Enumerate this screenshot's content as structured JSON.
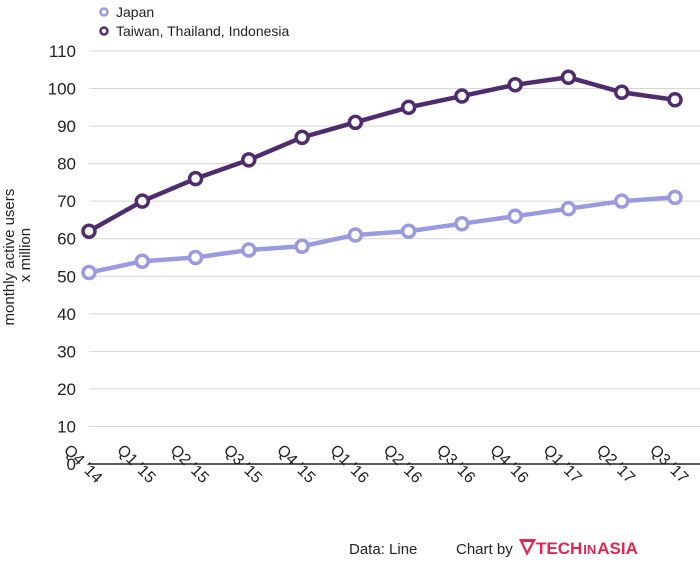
{
  "chart_data": {
    "type": "line",
    "title": "",
    "ylabel": [
      "monthly active users",
      "x million"
    ],
    "xlabel": "",
    "categories": [
      "Q4 '14",
      "Q1 '15",
      "Q2 '15",
      "Q3 '15",
      "Q4 '15",
      "Q1 '16",
      "Q2 '16",
      "Q3 '16",
      "Q4 '16",
      "Q1 '17",
      "Q2 '17",
      "Q3 '17"
    ],
    "y_ticks": [
      0,
      10,
      20,
      30,
      40,
      50,
      60,
      70,
      80,
      90,
      100,
      110
    ],
    "ylim": [
      0,
      110
    ],
    "grid": true,
    "legend_position": "top-left",
    "series": [
      {
        "name": "Japan",
        "color": "#9a9ae0",
        "values": [
          51,
          54,
          55,
          57,
          58,
          61,
          62,
          64,
          66,
          68,
          70,
          71
        ]
      },
      {
        "name": "Taiwan, Thailand, Indonesia",
        "color": "#4e2c6e",
        "values": [
          62,
          70,
          76,
          81,
          87,
          91,
          95,
          98,
          101,
          103,
          99,
          97
        ]
      }
    ]
  },
  "footer": {
    "source": "Data: Line",
    "credit": "Chart by",
    "logo_text": "TECH",
    "logo_small": "IN",
    "logo_text2": "ASIA"
  }
}
